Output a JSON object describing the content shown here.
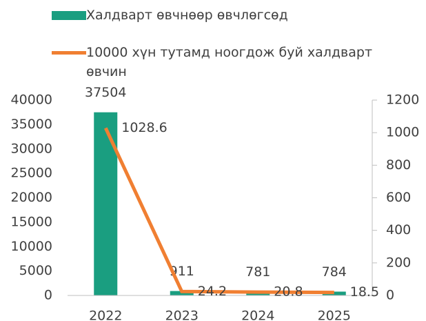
{
  "chart_data": {
    "type": "bar-line",
    "categories": [
      "2022",
      "2023",
      "2024",
      "2025"
    ],
    "series": [
      {
        "name": "Халдварт өвчнөөр өвчлөгсөд",
        "type": "bar",
        "color": "#1a9e80",
        "axis": "y",
        "values": [
          37504,
          911,
          781,
          784
        ]
      },
      {
        "name": "10000 хүн тутамд ноогдож буй халдварт өвчин",
        "type": "line",
        "color": "#f07f32",
        "axis": "y2",
        "values": [
          1028.6,
          24.2,
          20.8,
          18.5
        ]
      }
    ],
    "ylim": [
      0,
      40000
    ],
    "yticks": [
      0,
      5000,
      10000,
      15000,
      20000,
      25000,
      30000,
      35000,
      40000
    ],
    "y2lim": [
      0,
      1200
    ],
    "y2ticks": [
      0,
      200,
      400,
      600,
      800,
      1000,
      1200
    ],
    "legend": "top"
  }
}
